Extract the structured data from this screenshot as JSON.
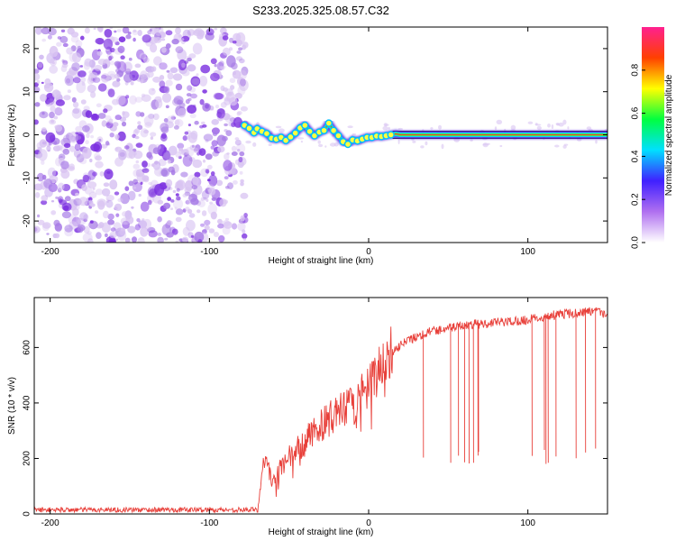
{
  "title": "S233.2025.325.08.57.C32",
  "colors": {
    "snr_line": "#e8403a",
    "ridge_line": "#000000",
    "ridge_core": "#e8403a",
    "noise_light": "#d9c4f2",
    "noise_mid": "#a77be6",
    "noise_dark": "#7b2fe0"
  },
  "chart_data": [
    {
      "type": "heatmap",
      "name": "spectrogram",
      "xlabel": "Height of straight line (km)",
      "ylabel": "Frequency (Hz)",
      "xlim": [
        -210,
        150
      ],
      "ylim": [
        -25,
        25
      ],
      "x_ticks": [
        -200,
        -100,
        0,
        100
      ],
      "y_ticks": [
        -20,
        -10,
        0,
        10,
        20
      ],
      "noise_region": [
        -210,
        -77
      ],
      "ridge": {
        "x": [
          -78,
          -75,
          -72,
          -70,
          -67,
          -64,
          -61,
          -58,
          -55,
          -52,
          -49,
          -46,
          -43,
          -40,
          -37,
          -34,
          -31,
          -28,
          -25,
          -22,
          -19,
          -16,
          -13,
          -10,
          -7,
          -4,
          -1,
          2,
          5,
          8,
          11,
          14,
          17,
          20,
          30,
          40,
          60,
          80,
          100,
          120,
          150
        ],
        "y": [
          2.2,
          1.5,
          0.5,
          1.4,
          0.8,
          0.3,
          -0.8,
          -1.0,
          -0.6,
          -1.3,
          -0.5,
          0.4,
          1.6,
          2.2,
          0.8,
          -0.2,
          0.6,
          1.0,
          2.7,
          1.0,
          -0.2,
          -1.6,
          -2.2,
          -1.2,
          -1.4,
          -1.0,
          -0.6,
          -0.6,
          -0.3,
          -0.4,
          -0.2,
          0.0,
          0.2,
          0.0,
          0.0,
          0.0,
          0.0,
          0.0,
          0.0,
          0.0,
          0.0
        ]
      },
      "reference_band": {
        "x_start": 15,
        "x_end": 150,
        "y_low": -0.8,
        "y_high": 0.8
      }
    },
    {
      "type": "line",
      "name": "snr",
      "xlabel": "Height of straight line (km)",
      "ylabel": "SNR (10 * v/v)",
      "xlim": [
        -210,
        150
      ],
      "ylim": [
        0,
        780
      ],
      "x_ticks": [
        -200,
        -100,
        0,
        100
      ],
      "y_ticks": [
        0,
        200,
        400,
        600
      ],
      "envelope": {
        "x": [
          -210,
          -100,
          -70,
          -66,
          -60,
          -50,
          -40,
          -30,
          -20,
          -10,
          0,
          10,
          20,
          30,
          40,
          60,
          80,
          100,
          120,
          140,
          150
        ],
        "y": [
          15,
          15,
          15,
          200,
          120,
          200,
          260,
          320,
          360,
          390,
          450,
          560,
          610,
          640,
          660,
          680,
          690,
          700,
          720,
          730,
          720
        ]
      },
      "spike_ranges": [
        [
          20,
          80
        ],
        [
          100,
          150
        ]
      ],
      "spike_floor": 180
    }
  ],
  "colorbar": {
    "label": "Normalized spectral amplitude",
    "range": [
      0,
      1
    ],
    "ticks": [
      "0.0",
      "0.2",
      "0.4",
      "0.6",
      "0.8"
    ],
    "tick_values": [
      0.0,
      0.2,
      0.4,
      0.6,
      0.8
    ],
    "stops": [
      "#ffffff",
      "#b070f0",
      "#4020ff",
      "#00e0ff",
      "#00ff40",
      "#ffff00",
      "#ff4000",
      "#ff2090"
    ]
  }
}
